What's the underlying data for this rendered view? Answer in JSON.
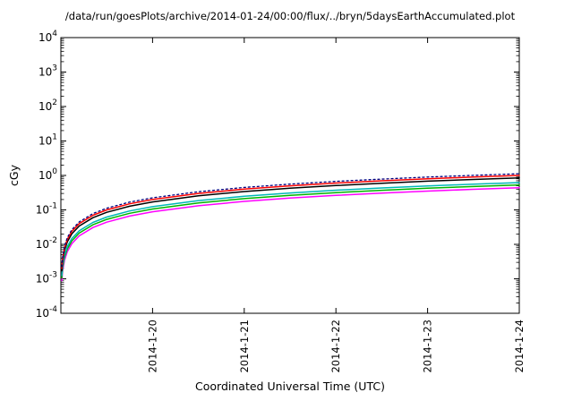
{
  "page": {
    "background": "#ffffff"
  },
  "chart_data": {
    "type": "line",
    "title": "/data/run/goesPlots/archive/2014-01-24/00:00/flux/../bryn/5daysEarthAccumulated.plot",
    "xlabel": "Coordinated Universal Time (UTC)",
    "ylabel": "cGy",
    "legend": "none",
    "grid": false,
    "x_axis": {
      "range_days": [
        0,
        5
      ],
      "start_date": "2014-01-19",
      "end_date": "2014-01-24",
      "tick_t_days": [
        1,
        2,
        3,
        4,
        5
      ],
      "tick_labels": [
        "2014-1-20",
        "2014-1-21",
        "2014-1-22",
        "2014-1-23",
        "2014-1-24"
      ]
    },
    "y_axis": {
      "scale": "log",
      "min": 0.0001,
      "max": 10000,
      "tick_exponents": [
        4,
        3,
        2,
        1,
        0,
        -1,
        -2,
        -3,
        -4
      ]
    },
    "t_days": [
      0.01,
      0.02,
      0.04,
      0.07,
      0.12,
      0.2,
      0.35,
      0.5,
      0.75,
      1.0,
      1.5,
      2.0,
      2.5,
      3.0,
      3.5,
      4.0,
      4.5,
      5.0
    ],
    "series": [
      {
        "name": "accumulated-dose-magenta",
        "color": "#ff00ff",
        "style": "solid",
        "final_cgy": 0.44,
        "values": [
          0.00088,
          0.00176,
          0.00352,
          0.00616,
          0.01056,
          0.0176,
          0.0308,
          0.044,
          0.066,
          0.088,
          0.132,
          0.176,
          0.22,
          0.264,
          0.308,
          0.352,
          0.396,
          0.44
        ]
      },
      {
        "name": "accumulated-dose-green",
        "color": "#00b400",
        "style": "solid",
        "final_cgy": 0.53,
        "values": [
          0.00106,
          0.00212,
          0.00424,
          0.00742,
          0.01272,
          0.0212,
          0.0371,
          0.053,
          0.0795,
          0.106,
          0.159,
          0.212,
          0.265,
          0.318,
          0.371,
          0.424,
          0.477,
          0.53
        ]
      },
      {
        "name": "accumulated-dose-cyan",
        "color": "#00b8b8",
        "style": "solid",
        "final_cgy": 0.62,
        "values": [
          0.00124,
          0.00248,
          0.00496,
          0.00868,
          0.01488,
          0.0248,
          0.0434,
          0.062,
          0.093,
          0.124,
          0.186,
          0.248,
          0.31,
          0.372,
          0.434,
          0.496,
          0.558,
          0.62
        ]
      },
      {
        "name": "accumulated-dose-black",
        "color": "#000000",
        "style": "solid",
        "final_cgy": 0.85,
        "values": [
          0.0017,
          0.0034,
          0.0068,
          0.0119,
          0.0204,
          0.034,
          0.0595,
          0.085,
          0.1275,
          0.17,
          0.255,
          0.34,
          0.425,
          0.51,
          0.595,
          0.68,
          0.765,
          0.85
        ]
      },
      {
        "name": "accumulated-dose-red",
        "color": "#ff0000",
        "style": "solid",
        "final_cgy": 1.0,
        "values": [
          0.002,
          0.004,
          0.008,
          0.014,
          0.024,
          0.04,
          0.07,
          0.1,
          0.15,
          0.2,
          0.3,
          0.4,
          0.5,
          0.6,
          0.7,
          0.8,
          0.9,
          1.0
        ]
      },
      {
        "name": "accumulated-dose-navy-dotted",
        "color": "#000080",
        "style": "dotted",
        "final_cgy": 1.12,
        "values": [
          0.00224,
          0.00448,
          0.00896,
          0.01568,
          0.02688,
          0.0448,
          0.0784,
          0.112,
          0.168,
          0.224,
          0.336,
          0.448,
          0.56,
          0.672,
          0.784,
          0.896,
          1.008,
          1.12
        ]
      }
    ]
  }
}
